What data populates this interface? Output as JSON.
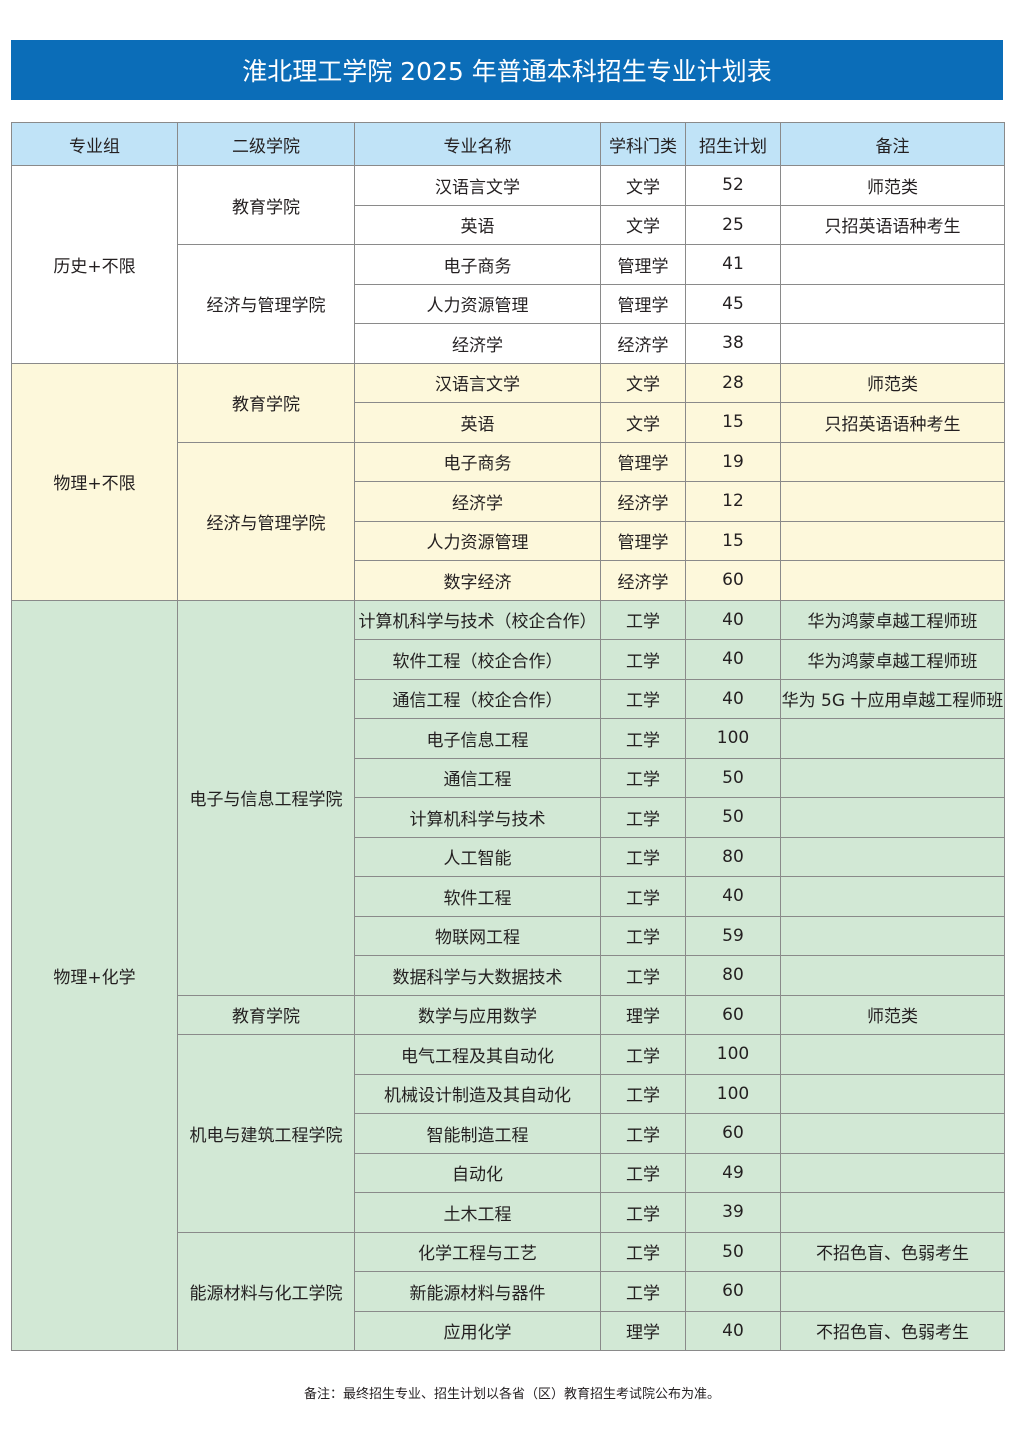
{
  "title": "淮北理工学院 2025 年普通本科招生专业计划表",
  "columns": [
    "专业组",
    "二级学院",
    "专业名称",
    "学科门类",
    "招生计划",
    "备注"
  ],
  "colors": {
    "title_bg": "#0b6db8",
    "header_bg": "#c0e3f7",
    "group_bgs": [
      "#ffffff",
      "#fdf8db",
      "#d2e8d5"
    ]
  },
  "groups": [
    {
      "name": "历史+不限",
      "colleges": [
        {
          "name": "教育学院",
          "majors": [
            [
              "汉语言文学",
              "文学",
              "52",
              "师范类"
            ],
            [
              "英语",
              "文学",
              "25",
              "只招英语语种考生"
            ]
          ]
        },
        {
          "name": "经济与管理学院",
          "majors": [
            [
              "电子商务",
              "管理学",
              "41",
              ""
            ],
            [
              "人力资源管理",
              "管理学",
              "45",
              ""
            ],
            [
              "经济学",
              "经济学",
              "38",
              ""
            ]
          ]
        }
      ]
    },
    {
      "name": "物理+不限",
      "colleges": [
        {
          "name": "教育学院",
          "majors": [
            [
              "汉语言文学",
              "文学",
              "28",
              "师范类"
            ],
            [
              "英语",
              "文学",
              "15",
              "只招英语语种考生"
            ]
          ]
        },
        {
          "name": "经济与管理学院",
          "majors": [
            [
              "电子商务",
              "管理学",
              "19",
              ""
            ],
            [
              "经济学",
              "经济学",
              "12",
              ""
            ],
            [
              "人力资源管理",
              "管理学",
              "15",
              ""
            ],
            [
              "数字经济",
              "经济学",
              "60",
              ""
            ]
          ]
        }
      ]
    },
    {
      "name": "物理+化学",
      "colleges": [
        {
          "name": "电子与信息工程学院",
          "majors": [
            [
              "计算机科学与技术（校企合作）",
              "工学",
              "40",
              "华为鸿蒙卓越工程师班"
            ],
            [
              "软件工程（校企合作）",
              "工学",
              "40",
              "华为鸿蒙卓越工程师班"
            ],
            [
              "通信工程（校企合作）",
              "工学",
              "40",
              "华为 5G 十应用卓越工程师班"
            ],
            [
              "电子信息工程",
              "工学",
              "100",
              ""
            ],
            [
              "通信工程",
              "工学",
              "50",
              ""
            ],
            [
              "计算机科学与技术",
              "工学",
              "50",
              ""
            ],
            [
              "人工智能",
              "工学",
              "80",
              ""
            ],
            [
              "软件工程",
              "工学",
              "40",
              ""
            ],
            [
              "物联网工程",
              "工学",
              "59",
              ""
            ],
            [
              "数据科学与大数据技术",
              "工学",
              "80",
              ""
            ]
          ]
        },
        {
          "name": "教育学院",
          "majors": [
            [
              "数学与应用数学",
              "理学",
              "60",
              "师范类"
            ]
          ]
        },
        {
          "name": "机电与建筑工程学院",
          "majors": [
            [
              "电气工程及其自动化",
              "工学",
              "100",
              ""
            ],
            [
              "机械设计制造及其自动化",
              "工学",
              "100",
              ""
            ],
            [
              "智能制造工程",
              "工学",
              "60",
              ""
            ],
            [
              "自动化",
              "工学",
              "49",
              ""
            ],
            [
              "土木工程",
              "工学",
              "39",
              ""
            ]
          ]
        },
        {
          "name": "能源材料与化工学院",
          "majors": [
            [
              "化学工程与工艺",
              "工学",
              "50",
              "不招色盲、色弱考生"
            ],
            [
              "新能源材料与器件",
              "工学",
              "60",
              ""
            ],
            [
              "应用化学",
              "理学",
              "40",
              "不招色盲、色弱考生"
            ]
          ]
        }
      ]
    }
  ],
  "footnote": "备注：最终招生专业、招生计划以各省（区）教育招生考试院公布为准。"
}
